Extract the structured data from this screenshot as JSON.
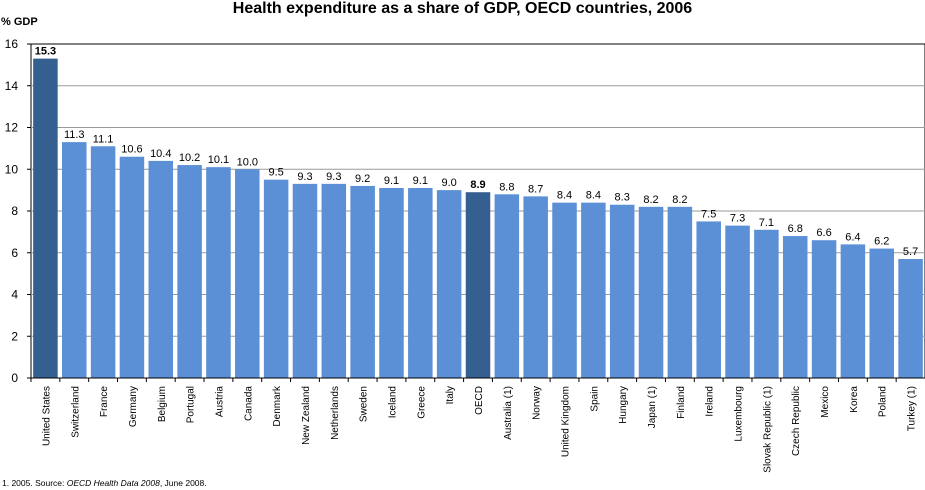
{
  "chart_data": {
    "type": "bar",
    "title": "Health expenditure as a share of GDP, OECD countries, 2006",
    "ylabel": "% GDP",
    "ylim": [
      0,
      16
    ],
    "yticks": [
      0,
      2,
      4,
      6,
      8,
      10,
      12,
      14,
      16
    ],
    "grid": true,
    "categories": [
      "United States",
      "Switzerland",
      "France",
      "Germany",
      "Belgium",
      "Portugal",
      "Austria",
      "Canada",
      "Denmark",
      "New Zealand",
      "Netherlands",
      "Sweden",
      "Iceland",
      "Greece",
      "Italy",
      "OECD",
      "Australia (1)",
      "Norway",
      "United Kingdom",
      "Spain",
      "Hungary",
      "Japan (1)",
      "Finland",
      "Ireland",
      "Luxembourg",
      "Slovak Republic (1)",
      "Czech Republic",
      "Mexico",
      "Korea",
      "Poland",
      "Turkey (1)"
    ],
    "values": [
      15.3,
      11.3,
      11.1,
      10.6,
      10.4,
      10.2,
      10.1,
      10.0,
      9.5,
      9.3,
      9.3,
      9.2,
      9.1,
      9.1,
      9.0,
      8.9,
      8.8,
      8.7,
      8.4,
      8.4,
      8.3,
      8.2,
      8.2,
      7.5,
      7.3,
      7.1,
      6.8,
      6.6,
      6.4,
      6.2,
      5.7
    ],
    "value_labels": [
      "15.3",
      "11.3",
      "11.1",
      "10.6",
      "10.4",
      "10.2",
      "10.1",
      "10.0",
      "9.5",
      "9.3",
      "9.3",
      "9.2",
      "9.1",
      "9.1",
      "9.0",
      "8.9",
      "8.8",
      "8.7",
      "8.4",
      "8.4",
      "8.3",
      "8.2",
      "8.2",
      "7.5",
      "7.3",
      "7.1",
      "6.8",
      "6.6",
      "6.4",
      "6.2",
      "5.7"
    ],
    "highlighted": [
      "United States",
      "OECD"
    ],
    "colors": {
      "bar": "#5b8fd6",
      "highlight": "#355f91",
      "plot_bg": "#ffffff",
      "grid": "#9a9a9a"
    }
  },
  "footnote": {
    "prefix": "1. 2005.   Source: ",
    "source_title": "OECD Health Data 2008",
    "suffix": ", June 2008."
  }
}
